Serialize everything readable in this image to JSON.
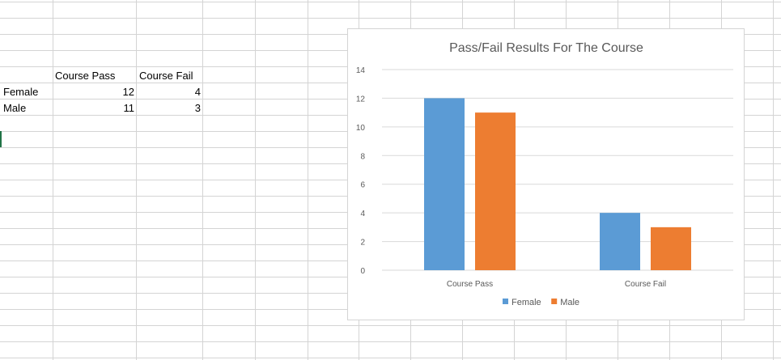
{
  "sheet": {
    "headers": [
      "",
      "Course Pass",
      "Course Fail"
    ],
    "rows": [
      {
        "label": "Female",
        "pass": "12",
        "fail": "4"
      },
      {
        "label": "Male",
        "pass": "11",
        "fail": "3"
      }
    ]
  },
  "colors": {
    "female": "#5b9bd5",
    "male": "#ed7d31",
    "gridline": "#d9d9d9",
    "cell_border": "#d4d4d4",
    "active_cell": "#217346"
  },
  "chart_data": {
    "type": "bar",
    "title": "Pass/Fail Results For The Course",
    "categories": [
      "Course Pass",
      "Course Fail"
    ],
    "series": [
      {
        "name": "Female",
        "values": [
          12,
          4
        ]
      },
      {
        "name": "Male",
        "values": [
          11,
          3
        ]
      }
    ],
    "ylim": [
      0,
      14
    ],
    "yticks": [
      0,
      2,
      4,
      6,
      8,
      10,
      12,
      14
    ],
    "grid": true,
    "legend": "bottom"
  }
}
